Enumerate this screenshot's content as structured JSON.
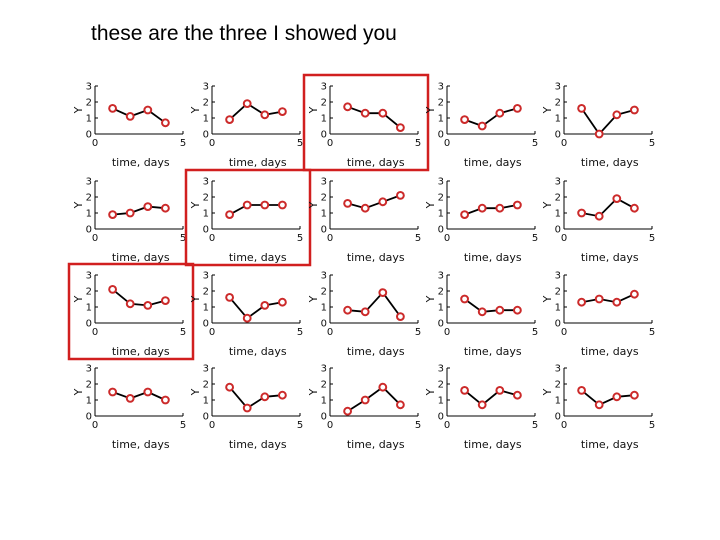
{
  "slide": {
    "title": "these are the three I showed you"
  },
  "highlight_color": "#d11f1f",
  "series_color": "#cc2a2a",
  "chart_data": {
    "type": "line",
    "layout": "4x5 small multiples",
    "xlabel": "time, days",
    "ylabel": "Y",
    "xlim": [
      0,
      5
    ],
    "ylim": [
      0,
      3
    ],
    "xticks": [
      0,
      5
    ],
    "yticks": [
      0,
      1,
      2,
      3
    ],
    "x": [
      1,
      2,
      3,
      4
    ],
    "panels": [
      {
        "y": [
          1.6,
          1.1,
          1.5,
          0.7
        ],
        "highlighted": false
      },
      {
        "y": [
          0.9,
          1.9,
          1.2,
          1.4
        ],
        "highlighted": false
      },
      {
        "y": [
          1.7,
          1.3,
          1.3,
          0.4
        ],
        "highlighted": true
      },
      {
        "y": [
          0.9,
          0.5,
          1.3,
          1.6
        ],
        "highlighted": false
      },
      {
        "y": [
          1.6,
          0.0,
          1.2,
          1.5
        ],
        "highlighted": false
      },
      {
        "y": [
          0.9,
          1.0,
          1.4,
          1.3
        ],
        "highlighted": false
      },
      {
        "y": [
          0.9,
          1.5,
          1.5,
          1.5
        ],
        "highlighted": true
      },
      {
        "y": [
          1.6,
          1.3,
          1.7,
          2.1
        ],
        "highlighted": false
      },
      {
        "y": [
          0.9,
          1.3,
          1.3,
          1.5
        ],
        "highlighted": false
      },
      {
        "y": [
          1.0,
          0.8,
          1.9,
          1.3
        ],
        "highlighted": false
      },
      {
        "y": [
          2.1,
          1.2,
          1.1,
          1.4
        ],
        "highlighted": true
      },
      {
        "y": [
          1.6,
          0.3,
          1.1,
          1.3
        ],
        "highlighted": false
      },
      {
        "y": [
          0.8,
          0.7,
          1.9,
          0.4
        ],
        "highlighted": false
      },
      {
        "y": [
          1.5,
          0.7,
          0.8,
          0.8
        ],
        "highlighted": false
      },
      {
        "y": [
          1.3,
          1.5,
          1.3,
          1.8
        ],
        "highlighted": false
      },
      {
        "y": [
          1.5,
          1.1,
          1.5,
          1.0
        ],
        "highlighted": false
      },
      {
        "y": [
          1.8,
          0.5,
          1.2,
          1.3
        ],
        "highlighted": false
      },
      {
        "y": [
          0.3,
          1.0,
          1.8,
          0.7
        ],
        "highlighted": false
      },
      {
        "y": [
          1.6,
          0.7,
          1.6,
          1.3
        ],
        "highlighted": false
      },
      {
        "y": [
          1.6,
          0.7,
          1.2,
          1.3
        ],
        "highlighted": false
      }
    ]
  }
}
